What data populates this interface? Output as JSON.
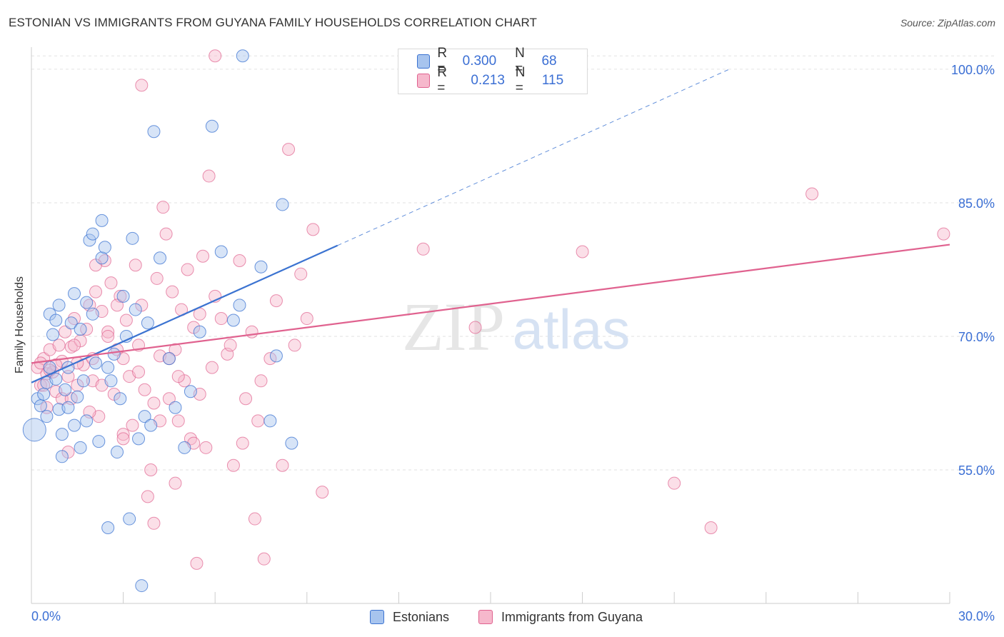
{
  "title": "ESTONIAN VS IMMIGRANTS FROM GUYANA FAMILY HOUSEHOLDS CORRELATION CHART",
  "source": "Source: ZipAtlas.com",
  "watermark": {
    "zip": "ZIP",
    "atlas": "atlas"
  },
  "colors": {
    "blue": "#3b73d1",
    "pink": "#e0628f",
    "blue_fill": "#a7c4ee",
    "pink_fill": "#f6b8cc",
    "axis_blue": "#3b6fd4"
  },
  "legend": {
    "r_label": "R =",
    "n_label": "N =",
    "estonians": {
      "r": "0.300",
      "n": "68"
    },
    "guyana": {
      "r": "0.213",
      "n": "115"
    }
  },
  "bottom_legend": {
    "estonians": "Estonians",
    "guyana": "Immigrants from Guyana"
  },
  "chart_data": {
    "type": "scatter",
    "title": "ESTONIAN VS IMMIGRANTS FROM GUYANA FAMILY HOUSEHOLDS CORRELATION CHART",
    "xlabel": "",
    "ylabel": "Family Households",
    "xlim": [
      0,
      30
    ],
    "ylim": [
      40,
      102
    ],
    "x_tick_labels": [
      "0.0%",
      "30.0%"
    ],
    "y_ticks": [
      55,
      70,
      85,
      100
    ],
    "y_tick_labels": [
      "55.0%",
      "70.0%",
      "85.0%",
      "100.0%"
    ],
    "grid": true,
    "series": [
      {
        "name": "Estonians",
        "color": "#3b73d1",
        "trend": {
          "x0": 0,
          "y0": 64.8,
          "x1": 10.0,
          "y1": 80.2,
          "dashed_to_x": 22.8,
          "dashed_to_y": 100.0
        },
        "points": [
          [
            0.2,
            63.0
          ],
          [
            0.3,
            62.2
          ],
          [
            0.4,
            63.5
          ],
          [
            0.5,
            61.0
          ],
          [
            0.5,
            64.8
          ],
          [
            0.6,
            66.5
          ],
          [
            0.6,
            72.5
          ],
          [
            0.7,
            70.2
          ],
          [
            0.8,
            65.2
          ],
          [
            0.8,
            71.8
          ],
          [
            0.9,
            73.5
          ],
          [
            0.9,
            61.8
          ],
          [
            1.0,
            59.0
          ],
          [
            1.0,
            56.5
          ],
          [
            1.1,
            64.0
          ],
          [
            1.2,
            62.0
          ],
          [
            1.2,
            66.5
          ],
          [
            1.3,
            71.5
          ],
          [
            1.4,
            74.8
          ],
          [
            1.4,
            60.0
          ],
          [
            1.5,
            63.2
          ],
          [
            1.6,
            57.5
          ],
          [
            1.6,
            70.8
          ],
          [
            1.7,
            65.0
          ],
          [
            1.8,
            60.5
          ],
          [
            1.8,
            73.8
          ],
          [
            1.9,
            80.8
          ],
          [
            2.0,
            72.5
          ],
          [
            2.0,
            81.5
          ],
          [
            2.1,
            67.0
          ],
          [
            2.2,
            58.2
          ],
          [
            2.3,
            78.8
          ],
          [
            2.3,
            83.0
          ],
          [
            2.4,
            80.0
          ],
          [
            2.5,
            66.5
          ],
          [
            2.6,
            65.0
          ],
          [
            2.7,
            68.0
          ],
          [
            2.8,
            57.0
          ],
          [
            2.9,
            63.0
          ],
          [
            3.0,
            74.5
          ],
          [
            3.1,
            70.0
          ],
          [
            3.2,
            49.5
          ],
          [
            3.3,
            81.0
          ],
          [
            3.4,
            73.0
          ],
          [
            3.5,
            58.5
          ],
          [
            3.6,
            42.0
          ],
          [
            3.7,
            61.0
          ],
          [
            3.8,
            71.5
          ],
          [
            3.9,
            60.0
          ],
          [
            4.0,
            93.0
          ],
          [
            4.2,
            78.8
          ],
          [
            4.5,
            67.5
          ],
          [
            4.7,
            62.0
          ],
          [
            5.0,
            57.5
          ],
          [
            5.2,
            63.8
          ],
          [
            5.5,
            70.5
          ],
          [
            5.9,
            93.6
          ],
          [
            6.2,
            79.5
          ],
          [
            6.6,
            71.8
          ],
          [
            6.8,
            73.5
          ],
          [
            6.9,
            101.5
          ],
          [
            7.5,
            77.8
          ],
          [
            7.8,
            60.5
          ],
          [
            8.2,
            84.8
          ],
          [
            8.0,
            67.8
          ],
          [
            8.5,
            58.0
          ],
          [
            2.5,
            48.5
          ],
          [
            0.1,
            59.5
          ]
        ]
      },
      {
        "name": "Immigrants from Guyana",
        "color": "#e0628f",
        "trend": {
          "x0": 0,
          "y0": 67.0,
          "x1": 30.0,
          "y1": 80.3
        },
        "points": [
          [
            0.2,
            66.5
          ],
          [
            0.3,
            64.5
          ],
          [
            0.4,
            67.5
          ],
          [
            0.5,
            65.8
          ],
          [
            0.6,
            68.5
          ],
          [
            0.7,
            66.0
          ],
          [
            0.8,
            63.8
          ],
          [
            0.9,
            69.0
          ],
          [
            1.0,
            67.2
          ],
          [
            1.1,
            70.5
          ],
          [
            1.2,
            65.5
          ],
          [
            1.3,
            68.8
          ],
          [
            1.4,
            72.0
          ],
          [
            1.5,
            64.5
          ],
          [
            1.6,
            69.5
          ],
          [
            1.7,
            66.8
          ],
          [
            1.8,
            70.8
          ],
          [
            1.9,
            73.5
          ],
          [
            2.0,
            67.5
          ],
          [
            2.1,
            75.0
          ],
          [
            2.2,
            61.0
          ],
          [
            2.3,
            72.8
          ],
          [
            2.4,
            78.5
          ],
          [
            2.5,
            70.5
          ],
          [
            2.6,
            76.0
          ],
          [
            2.7,
            63.5
          ],
          [
            2.8,
            68.5
          ],
          [
            2.9,
            74.5
          ],
          [
            3.0,
            67.5
          ],
          [
            3.1,
            71.8
          ],
          [
            3.2,
            65.5
          ],
          [
            3.3,
            60.0
          ],
          [
            3.4,
            78.0
          ],
          [
            3.5,
            69.0
          ],
          [
            3.6,
            73.5
          ],
          [
            3.7,
            64.0
          ],
          [
            3.8,
            52.0
          ],
          [
            3.9,
            55.0
          ],
          [
            4.0,
            62.5
          ],
          [
            4.1,
            76.5
          ],
          [
            4.2,
            67.8
          ],
          [
            4.3,
            84.5
          ],
          [
            4.4,
            81.5
          ],
          [
            4.5,
            63.0
          ],
          [
            4.6,
            75.0
          ],
          [
            4.7,
            68.5
          ],
          [
            4.8,
            60.5
          ],
          [
            4.9,
            73.0
          ],
          [
            5.0,
            65.0
          ],
          [
            5.1,
            77.5
          ],
          [
            5.2,
            58.5
          ],
          [
            5.3,
            71.0
          ],
          [
            5.4,
            44.5
          ],
          [
            5.5,
            63.5
          ],
          [
            5.6,
            79.0
          ],
          [
            5.7,
            57.5
          ],
          [
            5.8,
            88.0
          ],
          [
            5.9,
            66.5
          ],
          [
            6.0,
            74.5
          ],
          [
            6.2,
            72.0
          ],
          [
            6.4,
            68.0
          ],
          [
            6.6,
            55.5
          ],
          [
            6.8,
            78.5
          ],
          [
            7.0,
            63.0
          ],
          [
            7.2,
            70.5
          ],
          [
            7.4,
            60.5
          ],
          [
            7.6,
            45.0
          ],
          [
            7.8,
            67.5
          ],
          [
            8.0,
            74.0
          ],
          [
            8.2,
            55.5
          ],
          [
            8.4,
            91.0
          ],
          [
            8.6,
            69.0
          ],
          [
            8.8,
            77.0
          ],
          [
            9.0,
            72.0
          ],
          [
            9.2,
            82.0
          ],
          [
            9.5,
            52.5
          ],
          [
            1.0,
            63.0
          ],
          [
            2.0,
            65.0
          ],
          [
            3.0,
            59.0
          ],
          [
            0.5,
            62.0
          ],
          [
            1.5,
            67.0
          ],
          [
            2.5,
            70.0
          ],
          [
            3.5,
            66.0
          ],
          [
            4.5,
            67.5
          ],
          [
            5.5,
            72.5
          ],
          [
            6.5,
            69.0
          ],
          [
            7.5,
            65.0
          ],
          [
            0.8,
            66.8
          ],
          [
            1.3,
            63.0
          ],
          [
            2.3,
            64.5
          ],
          [
            6.0,
            101.5
          ],
          [
            3.6,
            98.2
          ],
          [
            4.2,
            60.5
          ],
          [
            5.3,
            58.0
          ],
          [
            6.9,
            58.0
          ],
          [
            2.1,
            78.0
          ],
          [
            1.4,
            69.0
          ],
          [
            0.3,
            67.0
          ],
          [
            0.6,
            66.2
          ],
          [
            2.8,
            73.5
          ],
          [
            4.8,
            65.5
          ],
          [
            0.4,
            64.5
          ],
          [
            1.9,
            61.5
          ],
          [
            3.0,
            58.5
          ],
          [
            1.2,
            57.0
          ],
          [
            4.7,
            53.5
          ],
          [
            7.3,
            49.5
          ],
          [
            4.0,
            49.0
          ],
          [
            12.8,
            79.8
          ],
          [
            14.5,
            71.0
          ],
          [
            21.0,
            53.5
          ],
          [
            25.5,
            86.0
          ],
          [
            29.8,
            81.5
          ],
          [
            18.0,
            79.5
          ],
          [
            22.2,
            48.5
          ]
        ]
      }
    ]
  }
}
